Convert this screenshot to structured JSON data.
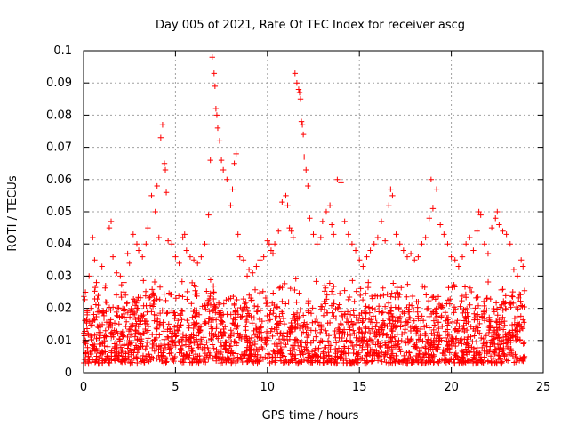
{
  "chart_data": {
    "type": "scatter",
    "title": "Day 005 of 2021, Rate Of TEC Index for receiver ascg",
    "xlabel": "GPS time / hours",
    "ylabel": "ROTI / TECUs",
    "xlim": [
      0,
      25
    ],
    "ylim": [
      0,
      0.1
    ],
    "x_ticks": [
      "0",
      "5",
      "10",
      "15",
      "20",
      "25"
    ],
    "y_ticks": [
      "0",
      "0.01",
      "0.02",
      "0.03",
      "0.04",
      "0.05",
      "0.06",
      "0.07",
      "0.08",
      "0.09",
      "0.1"
    ],
    "grid": true,
    "marker": "+",
    "marker_color": "#ff0000",
    "series": [
      {
        "name": "ROTI",
        "x": [
          0.1,
          0.2,
          0.3,
          0.4,
          0.5,
          0.6,
          0.7,
          0.8,
          1.0,
          1.2,
          1.4,
          1.5,
          1.6,
          1.8,
          2.0,
          2.2,
          2.4,
          2.5,
          2.7,
          2.9,
          3.0,
          3.2,
          3.4,
          3.5,
          3.7,
          3.9,
          4.0,
          4.1,
          4.2,
          4.3,
          4.4,
          4.45,
          4.5,
          4.6,
          4.8,
          5.0,
          5.2,
          5.4,
          5.5,
          5.6,
          5.8,
          6.0,
          6.2,
          6.4,
          6.6,
          6.8,
          6.9,
          7.0,
          7.1,
          7.15,
          7.2,
          7.25,
          7.3,
          7.4,
          7.5,
          7.6,
          7.8,
          8.0,
          8.1,
          8.2,
          8.3,
          8.4,
          8.5,
          8.7,
          8.9,
          9.0,
          9.2,
          9.4,
          9.6,
          9.8,
          10.0,
          10.1,
          10.2,
          10.3,
          10.4,
          10.6,
          10.8,
          11.0,
          11.1,
          11.2,
          11.3,
          11.4,
          11.5,
          11.6,
          11.7,
          11.75,
          11.8,
          11.85,
          11.9,
          11.95,
          12.0,
          12.1,
          12.2,
          12.3,
          12.5,
          12.7,
          12.9,
          13.0,
          13.2,
          13.4,
          13.5,
          13.6,
          13.8,
          14.0,
          14.2,
          14.4,
          14.6,
          14.8,
          15.0,
          15.2,
          15.4,
          15.6,
          15.8,
          16.0,
          16.2,
          16.4,
          16.6,
          16.7,
          16.8,
          17.0,
          17.2,
          17.4,
          17.6,
          17.8,
          18.0,
          18.2,
          18.4,
          18.6,
          18.8,
          18.9,
          19.0,
          19.2,
          19.4,
          19.6,
          19.8,
          20.0,
          20.2,
          20.4,
          20.6,
          20.8,
          21.0,
          21.2,
          21.4,
          21.5,
          21.6,
          21.8,
          22.0,
          22.2,
          22.4,
          22.5,
          22.6,
          22.8,
          23.0,
          23.2,
          23.4,
          23.6,
          23.8,
          23.9
        ],
        "y": [
          0.025,
          0.018,
          0.03,
          0.02,
          0.042,
          0.035,
          0.028,
          0.024,
          0.033,
          0.027,
          0.045,
          0.047,
          0.036,
          0.031,
          0.03,
          0.028,
          0.037,
          0.034,
          0.043,
          0.04,
          0.038,
          0.036,
          0.04,
          0.045,
          0.055,
          0.05,
          0.058,
          0.042,
          0.073,
          0.077,
          0.065,
          0.063,
          0.056,
          0.041,
          0.04,
          0.036,
          0.034,
          0.042,
          0.043,
          0.038,
          0.036,
          0.035,
          0.034,
          0.036,
          0.04,
          0.049,
          0.066,
          0.098,
          0.093,
          0.089,
          0.082,
          0.08,
          0.076,
          0.072,
          0.066,
          0.063,
          0.06,
          0.052,
          0.057,
          0.065,
          0.068,
          0.043,
          0.036,
          0.035,
          0.03,
          0.032,
          0.031,
          0.033,
          0.035,
          0.036,
          0.041,
          0.04,
          0.038,
          0.037,
          0.04,
          0.044,
          0.053,
          0.055,
          0.052,
          0.045,
          0.044,
          0.042,
          0.093,
          0.09,
          0.088,
          0.087,
          0.085,
          0.078,
          0.077,
          0.074,
          0.067,
          0.063,
          0.058,
          0.048,
          0.043,
          0.04,
          0.042,
          0.047,
          0.05,
          0.052,
          0.046,
          0.043,
          0.06,
          0.059,
          0.047,
          0.043,
          0.04,
          0.038,
          0.035,
          0.033,
          0.036,
          0.038,
          0.04,
          0.042,
          0.047,
          0.041,
          0.052,
          0.057,
          0.055,
          0.043,
          0.04,
          0.038,
          0.036,
          0.037,
          0.035,
          0.036,
          0.04,
          0.042,
          0.048,
          0.06,
          0.051,
          0.057,
          0.046,
          0.043,
          0.04,
          0.036,
          0.035,
          0.033,
          0.036,
          0.04,
          0.042,
          0.038,
          0.044,
          0.05,
          0.049,
          0.04,
          0.037,
          0.045,
          0.048,
          0.05,
          0.046,
          0.044,
          0.043,
          0.04,
          0.032,
          0.03,
          0.035,
          0.033
        ]
      }
    ],
    "band_summary": {
      "description": "dense cloud of points across the whole day",
      "typical_range": [
        0.003,
        0.03
      ]
    }
  }
}
